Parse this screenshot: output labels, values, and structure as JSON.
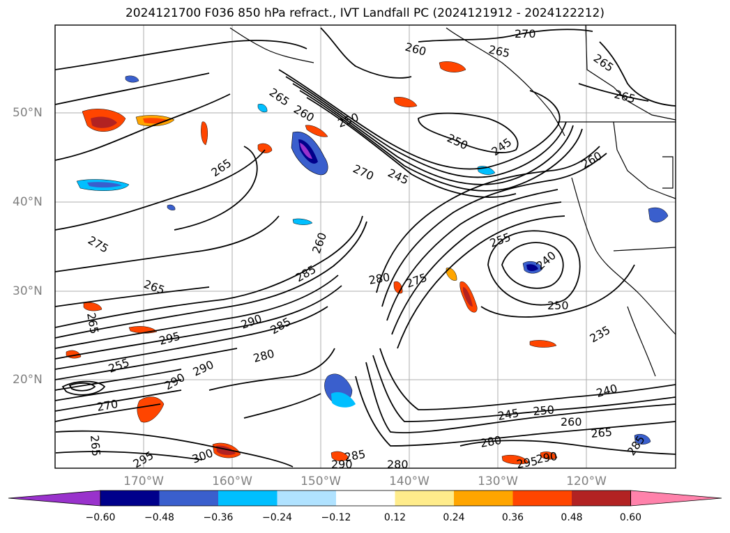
{
  "title": "2024121700 F036 850 hPa refract., IVT Landfall PC (2024121912 - 2024122212)",
  "map": {
    "lat_labels": [
      "50°N",
      "40°N",
      "30°N",
      "20°N"
    ],
    "lon_labels": [
      "170°W",
      "160°W",
      "150°W",
      "140°W",
      "130°W",
      "120°W"
    ],
    "contour_labels": [
      "270",
      "265",
      "260",
      "265",
      "265",
      "265",
      "260",
      "250",
      "250",
      "245",
      "245",
      "265",
      "270",
      "260",
      "275",
      "260",
      "255",
      "240",
      "265",
      "250",
      "280",
      "275",
      "285",
      "290",
      "295",
      "285",
      "280",
      "290",
      "235",
      "255",
      "290",
      "240",
      "245",
      "250",
      "260",
      "265",
      "280",
      "285",
      "285",
      "290",
      "280",
      "295",
      "290",
      "300",
      "295",
      "270",
      "265",
      "265"
    ]
  },
  "colorbar": {
    "colors": [
      "#9932cc",
      "#00008b",
      "#3a5fcd",
      "#00bfff",
      "#b0e2ff",
      "#ffffff",
      "#ffec8b",
      "#ffa500",
      "#ff4500",
      "#b22222",
      "#ff82ab"
    ],
    "tick_labels": [
      "−0.60",
      "−0.48",
      "−0.36",
      "−0.24",
      "−0.12",
      "0.12",
      "0.24",
      "0.36",
      "0.48",
      "0.60"
    ]
  }
}
